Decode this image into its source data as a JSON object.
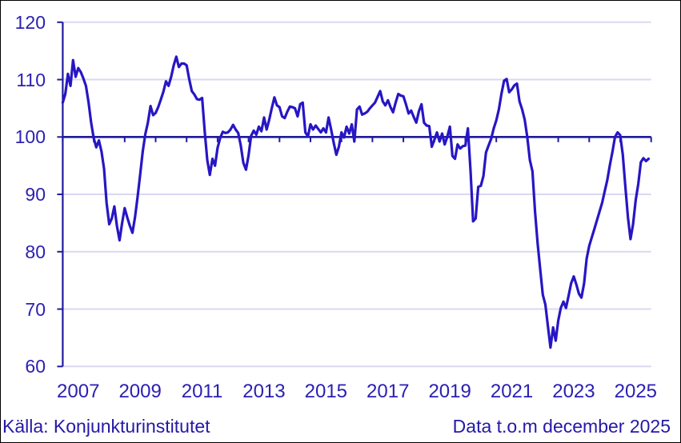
{
  "footer": {
    "source": "Källa: Konjunkturinstitutet",
    "note": "Data t.o.m december 2025"
  },
  "colors": {
    "line": "#2716C4",
    "axis": "#1F1B9C",
    "baseline": "#1F1B9C",
    "grid": "#D9D8F1",
    "label": "#2B20B3",
    "footer_text": "#2419A8",
    "background": "#FFFFFF",
    "border": "#000000"
  },
  "chart_data": {
    "type": "line",
    "title": "",
    "xlabel": "",
    "ylabel": "",
    "grid": true,
    "legend_position": "none",
    "ylim": [
      60,
      120
    ],
    "baseline_value": 100,
    "y_ticks": [
      120,
      110,
      100,
      90,
      80,
      70,
      60
    ],
    "x_tick_start_year": 2007,
    "x_tick_end_year": 2026,
    "x_labels": [
      "2007",
      "2009",
      "2011",
      "2013",
      "2015",
      "2017",
      "2019",
      "2021",
      "2023",
      "2025"
    ],
    "series_start": "2007-01",
    "series_end": "2025-12",
    "values": [
      106.0,
      107.5,
      111.0,
      108.9,
      113.4,
      110.5,
      112.0,
      111.3,
      110.2,
      108.9,
      106.0,
      102.5,
      99.8,
      98.2,
      99.4,
      97.5,
      94.5,
      88.5,
      84.8,
      85.8,
      87.9,
      84.5,
      82.0,
      85.0,
      87.6,
      86.0,
      84.5,
      83.3,
      86.0,
      89.5,
      93.5,
      97.5,
      100.5,
      102.5,
      105.4,
      103.8,
      104.2,
      105.2,
      106.5,
      107.9,
      109.7,
      108.9,
      110.5,
      112.5,
      114.0,
      112.2,
      112.8,
      112.8,
      112.5,
      110.1,
      108.0,
      107.4,
      106.6,
      106.5,
      106.8,
      101.0,
      96.0,
      93.4,
      96.2,
      95.0,
      98.1,
      99.8,
      100.9,
      100.7,
      100.8,
      101.3,
      102.1,
      101.3,
      100.7,
      98.5,
      95.5,
      94.3,
      96.8,
      100.2,
      101.1,
      100.4,
      101.8,
      101.0,
      103.4,
      101.3,
      103.0,
      105.0,
      106.9,
      105.5,
      105.2,
      103.6,
      103.3,
      104.4,
      105.3,
      105.2,
      105.0,
      103.6,
      105.7,
      106.0,
      100.8,
      100.1,
      102.2,
      101.3,
      102.0,
      101.4,
      100.8,
      101.5,
      100.8,
      103.4,
      101.3,
      99.0,
      96.9,
      98.3,
      100.8,
      99.9,
      101.8,
      100.6,
      102.2,
      99.2,
      104.8,
      105.3,
      103.9,
      104.1,
      104.4,
      105.0,
      105.5,
      106.0,
      107.0,
      108.0,
      106.2,
      105.5,
      106.4,
      105.2,
      104.3,
      106.0,
      107.5,
      107.2,
      107.1,
      105.7,
      104.1,
      104.6,
      103.5,
      102.5,
      104.5,
      105.7,
      102.5,
      102.0,
      101.9,
      98.3,
      99.5,
      100.8,
      99.2,
      100.6,
      98.7,
      100.0,
      101.8,
      96.7,
      96.2,
      98.7,
      98.0,
      98.4,
      98.5,
      101.5,
      94.1,
      85.3,
      85.8,
      91.3,
      91.5,
      93.2,
      97.3,
      98.5,
      99.7,
      101.5,
      102.9,
      104.8,
      107.5,
      109.8,
      110.1,
      107.8,
      108.3,
      109.0,
      109.3,
      106.2,
      104.8,
      103.0,
      100.0,
      96.0,
      94.0,
      87.0,
      81.5,
      77.0,
      72.5,
      70.8,
      67.0,
      63.3,
      66.8,
      64.5,
      68.0,
      70.2,
      71.3,
      70.2,
      72.3,
      74.5,
      75.7,
      74.3,
      72.7,
      72.0,
      74.5,
      78.8,
      81.0,
      82.5,
      84.0,
      85.5,
      87.0,
      88.5,
      90.5,
      92.5,
      95.1,
      97.4,
      100.0,
      100.8,
      100.3,
      97.0,
      91.3,
      86.0,
      82.2,
      84.8,
      89.0,
      91.8,
      95.6,
      96.3,
      95.8,
      96.2
    ]
  }
}
